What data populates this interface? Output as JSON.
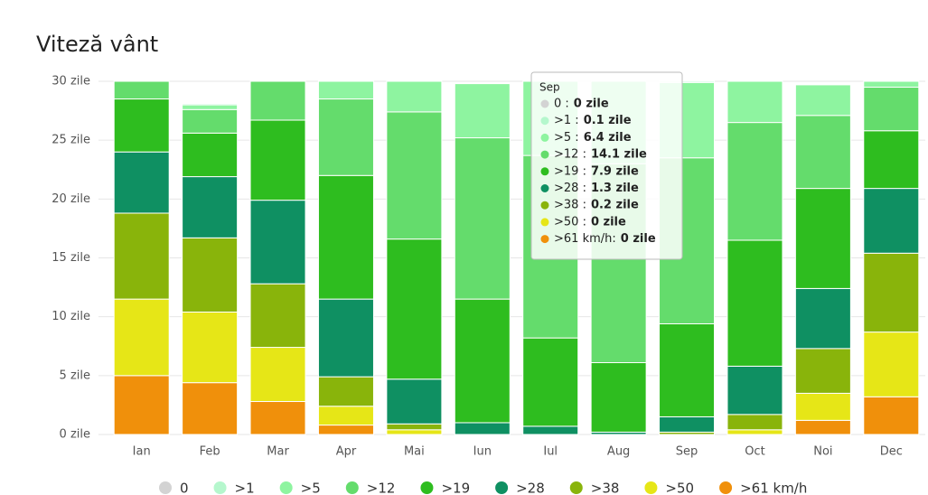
{
  "chart_data": {
    "type": "stacked_bar",
    "title": "Viteză vânt",
    "categories": [
      "Ian",
      "Feb",
      "Mar",
      "Apr",
      "Mai",
      "Iun",
      "Iul",
      "Aug",
      "Sep",
      "Oct",
      "Noi",
      "Dec"
    ],
    "series": [
      {
        "name": "0",
        "color": "#d3d3d3",
        "values": [
          0,
          0,
          0,
          0,
          0,
          0,
          0,
          0,
          0,
          0,
          0,
          0
        ]
      },
      {
        "name": ">1",
        "color": "#b5f7cd",
        "values": [
          0,
          0.1,
          0,
          0,
          0,
          0,
          0,
          0,
          0.1,
          0,
          0,
          0
        ]
      },
      {
        "name": ">5",
        "color": "#8ef4a0",
        "values": [
          0,
          0.4,
          0,
          1.5,
          2.6,
          4.6,
          6.3,
          7.0,
          6.4,
          3.5,
          2.6,
          0.5
        ]
      },
      {
        "name": ">12",
        "color": "#64dc6c",
        "values": [
          1.5,
          2.0,
          3.3,
          6.5,
          10.8,
          13.7,
          15.5,
          16.9,
          14.1,
          10.0,
          6.2,
          3.7
        ]
      },
      {
        "name": ">19",
        "color": "#2ebd1f",
        "values": [
          4.5,
          3.7,
          6.8,
          10.5,
          11.9,
          10.5,
          7.5,
          5.9,
          7.9,
          10.7,
          8.5,
          4.9
        ]
      },
      {
        "name": ">28",
        "color": "#0f9062",
        "values": [
          5.2,
          5.2,
          7.1,
          6.6,
          3.8,
          1.0,
          0.7,
          0.2,
          1.3,
          4.1,
          5.1,
          5.5
        ]
      },
      {
        "name": ">38",
        "color": "#89b40b",
        "values": [
          7.3,
          6.3,
          5.4,
          2.5,
          0.5,
          0,
          0,
          0,
          0.2,
          1.3,
          3.8,
          6.7
        ]
      },
      {
        "name": ">50",
        "color": "#e6e617",
        "values": [
          6.5,
          6.0,
          4.6,
          1.6,
          0.4,
          0,
          0,
          0,
          0,
          0.4,
          2.3,
          5.5
        ]
      },
      {
        "name": ">61 km/h",
        "color": "#f0900b",
        "values": [
          5.0,
          4.4,
          2.8,
          0.8,
          0,
          0,
          0,
          0,
          0,
          0,
          1.2,
          3.2
        ]
      }
    ],
    "ylim": [
      0,
      30
    ],
    "yticks": [
      {
        "value": 0,
        "label": "0 zile"
      },
      {
        "value": 5,
        "label": "5 zile"
      },
      {
        "value": 10,
        "label": "10 zile"
      },
      {
        "value": 15,
        "label": "15 zile"
      },
      {
        "value": 20,
        "label": "20 zile"
      },
      {
        "value": 25,
        "label": "25 zile"
      },
      {
        "value": 30,
        "label": "30 zile"
      }
    ],
    "grid": true,
    "legend": "bottom",
    "tooltip": {
      "title": "Sep",
      "rows": [
        {
          "label": "0 :",
          "value_label": "0 zile"
        },
        {
          "label": ">1 :",
          "value_label": "0.1 zile"
        },
        {
          "label": ">5 :",
          "value_label": "6.4 zile"
        },
        {
          "label": ">12 :",
          "value_label": "14.1 zile"
        },
        {
          "label": ">19 :",
          "value_label": "7.9 zile"
        },
        {
          "label": ">28 :",
          "value_label": "1.3 zile"
        },
        {
          "label": ">38 :",
          "value_label": "0.2 zile"
        },
        {
          "label": ">50 :",
          "value_label": "0 zile"
        },
        {
          "label": ">61 km/h:",
          "value_label": "0 zile"
        }
      ]
    }
  }
}
